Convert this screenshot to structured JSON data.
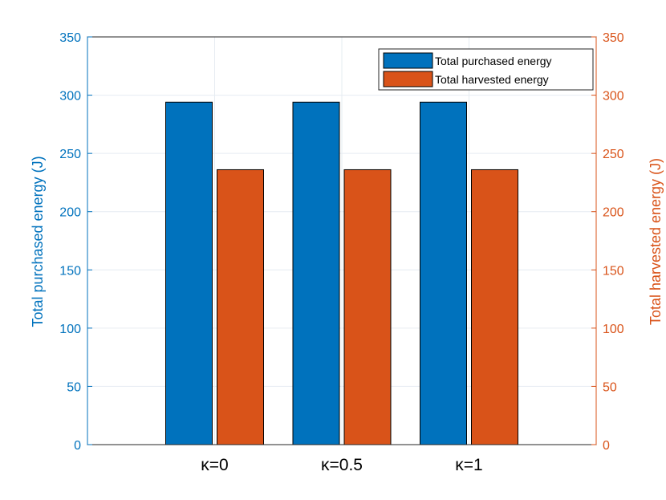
{
  "chart_data": {
    "type": "bar",
    "categories": [
      "κ=0",
      "κ=0.5",
      "κ=1"
    ],
    "series": [
      {
        "name": "Total purchased energy",
        "values": [
          294,
          294,
          294
        ],
        "color": "#0072BD"
      },
      {
        "name": "Total harvested energy",
        "values": [
          236,
          236,
          236
        ],
        "color": "#D95319"
      }
    ],
    "ylabel_left": "Total purchased energy (J)",
    "ylabel_right": "Total harvested energy (J)",
    "ylim": [
      0,
      350
    ],
    "yticks": [
      "0",
      "50",
      "100",
      "150",
      "200",
      "250",
      "300",
      "350"
    ],
    "grid": true,
    "legend_position": "top-right",
    "colors": {
      "left_axis": "#0072BD",
      "right_axis": "#D95319"
    }
  }
}
